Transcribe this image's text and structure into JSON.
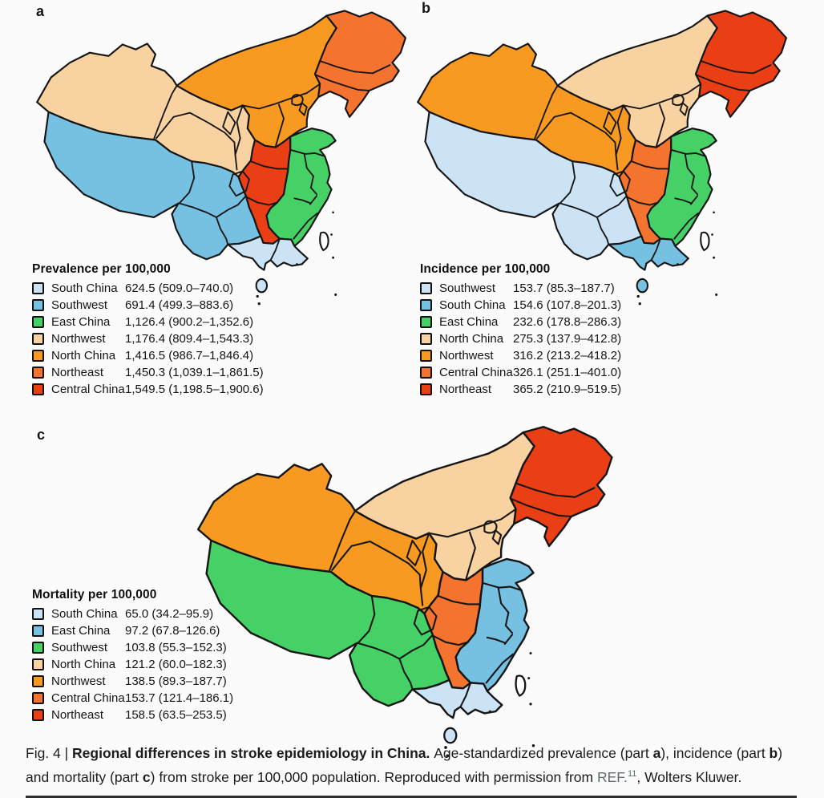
{
  "figure": {
    "palette_ranks": [
      "#cbe3f5",
      "#76c0e2",
      "#45d166",
      "#f8d2a0",
      "#f89a22",
      "#f4742f",
      "#ea3e14"
    ],
    "map_outline_color": "#151515",
    "panels": [
      {
        "label": "a",
        "legend_title": "Prevalence per 100,000",
        "rows": [
          {
            "region": "South China",
            "value": "624.5 (509.0–740.0)"
          },
          {
            "region": "Southwest",
            "value": "691.4 (499.3–883.6)"
          },
          {
            "region": "East China",
            "value": "1,126.4 (900.2–1,352.6)"
          },
          {
            "region": "Northwest",
            "value": "1,176.4 (809.4–1,543.3)"
          },
          {
            "region": "North China",
            "value": "1,416.5 (986.7–1,846.4)"
          },
          {
            "region": "Northeast",
            "value": "1,450.3 (1,039.1–1,861.5)"
          },
          {
            "region": "Central China",
            "value": "1,549.5 (1,198.5–1,900.6)"
          }
        ],
        "region_color_ranks": {
          "south_china": 1,
          "southwest": 2,
          "east_china": 3,
          "northwest": 4,
          "north_china": 5,
          "northeast": 6,
          "central_china": 7
        }
      },
      {
        "label": "b",
        "legend_title": "Incidence per 100,000",
        "rows": [
          {
            "region": "Southwest",
            "value": "153.7 (85.3–187.7)"
          },
          {
            "region": "South China",
            "value": "154.6 (107.8–201.3)"
          },
          {
            "region": "East China",
            "value": "232.6 (178.8–286.3)"
          },
          {
            "region": "North China",
            "value": "275.3 (137.9–412.8)"
          },
          {
            "region": "Northwest",
            "value": "316.2 (213.2–418.2)"
          },
          {
            "region": "Central China",
            "value": "326.1 (251.1–401.0)"
          },
          {
            "region": "Northeast",
            "value": "365.2 (210.9–519.5)"
          }
        ],
        "region_color_ranks": {
          "southwest": 1,
          "south_china": 2,
          "east_china": 3,
          "north_china": 4,
          "northwest": 5,
          "central_china": 6,
          "northeast": 7
        }
      },
      {
        "label": "c",
        "legend_title": "Mortality per 100,000",
        "rows": [
          {
            "region": "South China",
            "value": "65.0 (34.2–95.9)"
          },
          {
            "region": "East China",
            "value": "97.2 (67.8–126.6)"
          },
          {
            "region": "Southwest",
            "value": "103.8 (55.3–152.3)"
          },
          {
            "region": "North China",
            "value": "121.2 (60.0–182.3)"
          },
          {
            "region": "Northwest",
            "value": "138.5 (89.3–187.7)"
          },
          {
            "region": "Central China",
            "value": "153.7 (121.4–186.1)"
          },
          {
            "region": "Northeast",
            "value": "158.5 (63.5–253.5)"
          }
        ],
        "region_color_ranks": {
          "south_china": 1,
          "east_china": 2,
          "southwest": 3,
          "north_china": 4,
          "northwest": 5,
          "central_china": 6,
          "northeast": 7
        }
      }
    ],
    "caption": {
      "segments": [
        {
          "text": "Fig. 4 | "
        },
        {
          "text": "Regional differences in stroke epidemiology in China. ",
          "bold": true
        },
        {
          "text": "Age-standardized prevalence (part "
        },
        {
          "text": "a",
          "bold": true
        },
        {
          "text": "), incidence (part "
        },
        {
          "text": "b",
          "bold": true
        },
        {
          "text": ")"
        },
        {
          "break": true
        },
        {
          "text": "and mortality (part "
        },
        {
          "text": "c",
          "bold": true
        },
        {
          "text": ") from stroke per 100,000 population. Reproduced with permission from "
        },
        {
          "text": "REF.",
          "style": "ref"
        },
        {
          "text": "11",
          "style": "sup"
        },
        {
          "text": ", Wolters Kluwer."
        }
      ]
    }
  },
  "chart_data": [
    {
      "type": "heatmap",
      "subtype": "choropleth-map-of-china",
      "title": "Prevalence per 100,000",
      "categories": [
        "South China",
        "Southwest",
        "East China",
        "Northwest",
        "North China",
        "Northeast",
        "Central China"
      ],
      "values": [
        624.5,
        691.4,
        1126.4,
        1176.4,
        1416.5,
        1450.3,
        1549.5
      ],
      "ci_low": [
        509.0,
        499.3,
        900.2,
        809.4,
        986.7,
        1039.1,
        1198.5
      ],
      "ci_high": [
        740.0,
        883.6,
        1352.6,
        1543.3,
        1846.4,
        1861.5,
        1900.6
      ],
      "legend_position": "bottom-left",
      "color_scale_low_to_high": [
        "#cbe3f5",
        "#76c0e2",
        "#45d166",
        "#f8d2a0",
        "#f89a22",
        "#f4742f",
        "#ea3e14"
      ]
    },
    {
      "type": "heatmap",
      "subtype": "choropleth-map-of-china",
      "title": "Incidence per 100,000",
      "categories": [
        "Southwest",
        "South China",
        "East China",
        "North China",
        "Northwest",
        "Central China",
        "Northeast"
      ],
      "values": [
        153.7,
        154.6,
        232.6,
        275.3,
        316.2,
        326.1,
        365.2
      ],
      "ci_low": [
        85.3,
        107.8,
        178.8,
        137.9,
        213.2,
        251.1,
        210.9
      ],
      "ci_high": [
        187.7,
        201.3,
        286.3,
        412.8,
        418.2,
        401.0,
        519.5
      ],
      "legend_position": "bottom-left",
      "color_scale_low_to_high": [
        "#cbe3f5",
        "#76c0e2",
        "#45d166",
        "#f8d2a0",
        "#f89a22",
        "#f4742f",
        "#ea3e14"
      ]
    },
    {
      "type": "heatmap",
      "subtype": "choropleth-map-of-china",
      "title": "Mortality per 100,000",
      "categories": [
        "South China",
        "East China",
        "Southwest",
        "North China",
        "Northwest",
        "Central China",
        "Northeast"
      ],
      "values": [
        65.0,
        97.2,
        103.8,
        121.2,
        138.5,
        153.7,
        158.5
      ],
      "ci_low": [
        34.2,
        67.8,
        55.3,
        60.0,
        89.3,
        121.4,
        63.5
      ],
      "ci_high": [
        95.9,
        126.6,
        152.3,
        182.3,
        187.7,
        186.1,
        253.5
      ],
      "legend_position": "middle-left",
      "color_scale_low_to_high": [
        "#cbe3f5",
        "#76c0e2",
        "#45d166",
        "#f8d2a0",
        "#f89a22",
        "#f4742f",
        "#ea3e14"
      ]
    }
  ]
}
